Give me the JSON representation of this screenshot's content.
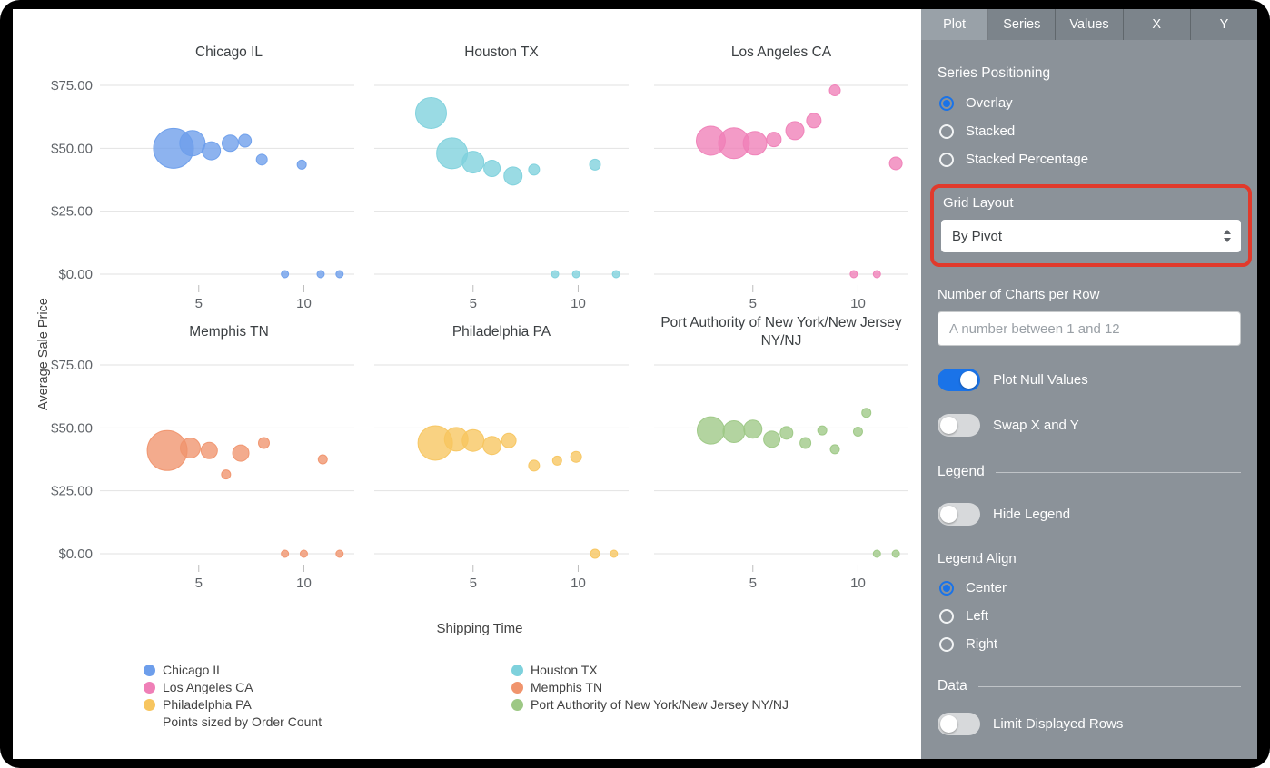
{
  "chart_area": {
    "y_axis_label": "Average Sale Price",
    "x_axis_label": "Shipping Time",
    "size_note": "Points sized by Order Count",
    "legend": {
      "columns": [
        [
          {
            "label": "Chicago IL",
            "color": "#6d9eeb"
          },
          {
            "label": "Los Angeles CA",
            "color": "#ef7fb7"
          },
          {
            "label": "Philadelphia PA",
            "color": "#f7c55f"
          }
        ],
        [
          {
            "label": "Houston TX",
            "color": "#7ed1dc"
          },
          {
            "label": "Memphis TN",
            "color": "#f0946d"
          },
          {
            "label": "Port Authority of New York/New Jersey NY/NJ",
            "color": "#9dc885"
          }
        ]
      ]
    }
  },
  "chart_data": {
    "type": "scatter",
    "subtype": "bubble-small-multiples",
    "title": "",
    "xlabel": "Shipping Time",
    "ylabel": "Average Sale Price",
    "sized_by": "Order Count",
    "x_ticks": [
      5,
      10
    ],
    "y_ticks": [
      0,
      25,
      50,
      75
    ],
    "y_tick_labels": [
      "$0.00",
      "$25.00",
      "$50.00",
      "$75.00"
    ],
    "xlim": [
      0.3,
      12.4
    ],
    "ylim": [
      0,
      78
    ],
    "grid": true,
    "legend_position": "bottom",
    "panels": [
      {
        "title": "Chicago IL",
        "color": "#6d9eeb",
        "points": [
          [
            3.8,
            50,
            22
          ],
          [
            4.7,
            52,
            14
          ],
          [
            5.6,
            49,
            10
          ],
          [
            6.5,
            52,
            9
          ],
          [
            7.2,
            53,
            7
          ],
          [
            8.0,
            45.5,
            6
          ],
          [
            9.9,
            43.5,
            5
          ],
          [
            9.1,
            0,
            4
          ],
          [
            10.8,
            0,
            4
          ],
          [
            11.7,
            0,
            4
          ]
        ]
      },
      {
        "title": "Houston TX",
        "color": "#7ed1dc",
        "points": [
          [
            3.0,
            64,
            17
          ],
          [
            4.0,
            48,
            17
          ],
          [
            5.0,
            44.5,
            12
          ],
          [
            5.9,
            42,
            9
          ],
          [
            6.9,
            39,
            10
          ],
          [
            7.9,
            41.5,
            6
          ],
          [
            10.8,
            43.5,
            6
          ],
          [
            8.9,
            0,
            4
          ],
          [
            9.9,
            0,
            4
          ],
          [
            11.8,
            0,
            4
          ]
        ]
      },
      {
        "title": "Los Angeles CA",
        "color": "#ef7fb7",
        "points": [
          [
            3.0,
            53,
            16
          ],
          [
            4.1,
            52,
            17
          ],
          [
            5.1,
            52,
            13
          ],
          [
            6.0,
            53.5,
            8
          ],
          [
            7.0,
            57,
            10
          ],
          [
            7.9,
            61,
            8
          ],
          [
            8.9,
            73,
            6
          ],
          [
            11.8,
            44,
            7
          ],
          [
            9.8,
            0,
            4
          ],
          [
            10.9,
            0,
            4
          ]
        ]
      },
      {
        "title": "Memphis TN",
        "color": "#f0946d",
        "points": [
          [
            3.5,
            41,
            22
          ],
          [
            4.6,
            42,
            11
          ],
          [
            5.5,
            41,
            9
          ],
          [
            7.0,
            40,
            9
          ],
          [
            8.1,
            44,
            6
          ],
          [
            6.3,
            31.5,
            5
          ],
          [
            10.9,
            37.5,
            5
          ],
          [
            9.1,
            0,
            4
          ],
          [
            10.0,
            0,
            4
          ],
          [
            11.7,
            0,
            4
          ]
        ]
      },
      {
        "title": "Philadelphia PA",
        "color": "#f7c55f",
        "points": [
          [
            3.2,
            44,
            19
          ],
          [
            4.2,
            45.5,
            13
          ],
          [
            5.0,
            45,
            12
          ],
          [
            5.9,
            43,
            10
          ],
          [
            6.7,
            45,
            8
          ],
          [
            7.9,
            35,
            6
          ],
          [
            9.0,
            37,
            5
          ],
          [
            9.9,
            38.5,
            6
          ],
          [
            10.8,
            0,
            5
          ],
          [
            11.7,
            0,
            4
          ]
        ]
      },
      {
        "title": "Port Authority of New York/New Jersey NY/NJ",
        "color": "#9dc885",
        "points": [
          [
            3.0,
            49,
            15
          ],
          [
            4.1,
            48.5,
            12
          ],
          [
            5.0,
            49.5,
            10
          ],
          [
            5.9,
            45.5,
            9
          ],
          [
            6.6,
            48,
            7
          ],
          [
            7.5,
            44,
            6
          ],
          [
            8.3,
            49,
            5
          ],
          [
            8.9,
            41.5,
            5
          ],
          [
            10.0,
            48.5,
            5
          ],
          [
            10.4,
            56,
            5
          ],
          [
            10.9,
            0,
            4
          ],
          [
            11.8,
            0,
            4
          ]
        ]
      }
    ]
  },
  "settings_panel": {
    "bg": "#8b9299",
    "accent_blue": "#1a73e8",
    "annotation_red": "#e13a2c",
    "tabs": [
      {
        "label": "Plot",
        "active": true
      },
      {
        "label": "Series",
        "active": false
      },
      {
        "label": "Values",
        "active": false
      },
      {
        "label": "X",
        "active": false
      },
      {
        "label": "Y",
        "active": false
      }
    ],
    "series_positioning": {
      "heading": "Series Positioning",
      "options": [
        {
          "label": "Overlay",
          "selected": true
        },
        {
          "label": "Stacked",
          "selected": false
        },
        {
          "label": "Stacked Percentage",
          "selected": false
        }
      ]
    },
    "grid_layout": {
      "label": "Grid Layout",
      "value": "By Pivot",
      "highlighted": true
    },
    "charts_per_row": {
      "label": "Number of Charts per Row",
      "placeholder": "A number between 1 and 12",
      "value": ""
    },
    "toggles": [
      {
        "label": "Plot Null Values",
        "on": true
      },
      {
        "label": "Swap X and Y",
        "on": false
      }
    ],
    "legend_section": {
      "heading": "Legend",
      "hide_legend": {
        "label": "Hide Legend",
        "on": false
      },
      "align": {
        "label": "Legend Align",
        "options": [
          {
            "label": "Center",
            "selected": true
          },
          {
            "label": "Left",
            "selected": false
          },
          {
            "label": "Right",
            "selected": false
          }
        ]
      }
    },
    "data_section": {
      "heading": "Data",
      "limit_rows": {
        "label": "Limit Displayed Rows",
        "on": false
      }
    }
  }
}
